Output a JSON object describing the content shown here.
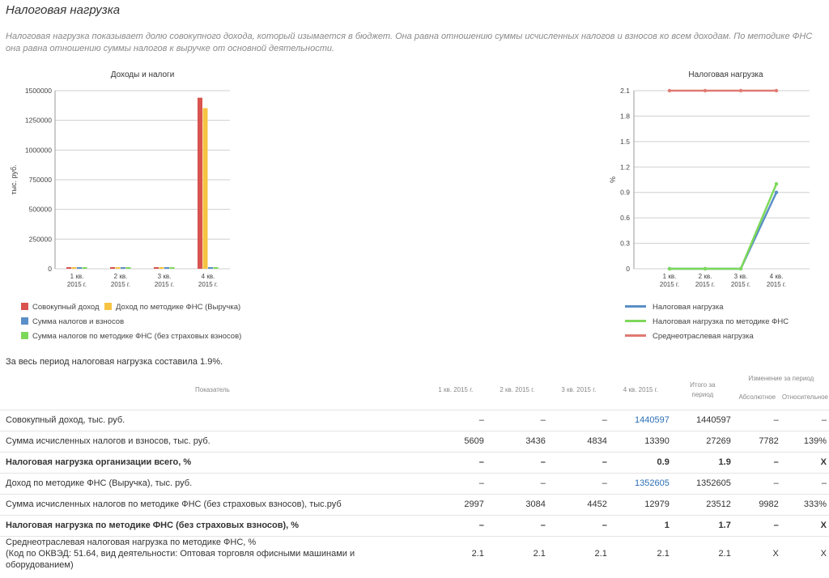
{
  "page": {
    "title": "Налоговая нагрузка",
    "description": "Налоговая нагрузка показывает долю совокупного дохода, который изымается в бюджет. Она равна отношению суммы исчисленных налогов и взносов ко всем доходам. По методике ФНС она равна отношению суммы налогов к выручке от основной деятельности."
  },
  "colors": {
    "red": "#d9534f",
    "yellow": "#f6c342",
    "blue": "#5b8fc7",
    "green": "#7dd85a",
    "red_line": "#e07a72"
  },
  "chart_data": [
    {
      "type": "bar",
      "title": "Доходы и налоги",
      "ylabel": "тыс. руб.",
      "categories": [
        "1 кв.\n2015 г.",
        "2 кв.\n2015 г.",
        "3 кв.\n2015 г.",
        "4 кв.\n2015 г."
      ],
      "category_lines": [
        [
          "1 кв.",
          "2015 г."
        ],
        [
          "2 кв.",
          "2015 г."
        ],
        [
          "3 кв.",
          "2015 г."
        ],
        [
          "4 кв.",
          "2015 г."
        ]
      ],
      "yticks": [
        0,
        250000,
        500000,
        750000,
        1000000,
        1250000,
        1500000
      ],
      "ylim": [
        0,
        1500000
      ],
      "series": [
        {
          "name": "Совокупный доход",
          "color": "#d9534f",
          "values": [
            0,
            0,
            0,
            1440597
          ]
        },
        {
          "name": "Доход по методике ФНС (Выручка)",
          "color": "#f6c342",
          "values": [
            0,
            0,
            0,
            1352605
          ]
        },
        {
          "name": "Сумма налогов и взносов",
          "color": "#5b8fc7",
          "values": [
            5609,
            3436,
            4834,
            13390
          ]
        },
        {
          "name": "Сумма налогов по методике ФНС (без страховых взносов)",
          "color": "#7dd85a",
          "values": [
            2997,
            3084,
            4452,
            12979
          ]
        }
      ],
      "grid": true,
      "legend": "bottom"
    },
    {
      "type": "line",
      "title": "Налоговая нагрузка",
      "ylabel": "%",
      "categories": [
        "1 кв.\n2015 г.",
        "2 кв.\n2015 г.",
        "3 кв.\n2015 г.",
        "4 кв.\n2015 г."
      ],
      "category_lines": [
        [
          "1 кв.",
          "2015 г."
        ],
        [
          "2 кв.",
          "2015 г."
        ],
        [
          "3 кв.",
          "2015 г."
        ],
        [
          "4 кв.",
          "2015 г."
        ]
      ],
      "yticks": [
        "0",
        "0.3",
        "0.6",
        "0.9",
        "1.2",
        "1.5",
        "1.8",
        "2.1"
      ],
      "ylim": [
        0,
        2.1
      ],
      "series": [
        {
          "name": "Налоговая нагрузка",
          "color": "#5b8fc7",
          "values": [
            0,
            0,
            0,
            0.9
          ]
        },
        {
          "name": "Налоговая нагрузка по методике ФНС",
          "color": "#7dd85a",
          "values": [
            0,
            0,
            0,
            1
          ]
        },
        {
          "name": "Среднеотраслевая нагрузка",
          "color": "#e07a72",
          "values": [
            2.1,
            2.1,
            2.1,
            2.1
          ]
        }
      ],
      "grid": true,
      "legend": "bottom"
    }
  ],
  "summary": "За весь период налоговая нагрузка составила  1.9%.",
  "table": {
    "headers": {
      "indicator": "Показатель",
      "q1": "1 кв. 2015 г.",
      "q2": "2 кв. 2015 г.",
      "q3": "3 кв. 2015 г.",
      "q4": "4 кв. 2015 г.",
      "total_line1": "Итого за",
      "total_line2": "период",
      "change": "Изменение за период",
      "absolute": "Абсолютное",
      "relative": "Относительное"
    },
    "rows": [
      {
        "name": "Совокупный доход, тыс. руб.",
        "cells": [
          "–",
          "–",
          "–",
          "1440597",
          "1440597",
          "–",
          "–"
        ],
        "bold": false,
        "link_col": 3
      },
      {
        "name": "Сумма исчисленных налогов и взносов, тыс. руб.",
        "cells": [
          "5609",
          "3436",
          "4834",
          "13390",
          "27269",
          "7782",
          "139%"
        ],
        "bold": false,
        "link_col": -1
      },
      {
        "name": "Налоговая нагрузка организации всего, %",
        "cells": [
          "–",
          "–",
          "–",
          "0.9",
          "1.9",
          "–",
          "X"
        ],
        "bold": true,
        "link_col": -1
      },
      {
        "name": "Доход по методике ФНС (Выручка), тыс. руб.",
        "cells": [
          "–",
          "–",
          "–",
          "1352605",
          "1352605",
          "–",
          "–"
        ],
        "bold": false,
        "link_col": 3
      },
      {
        "name": "Сумма исчисленных налогов по методике ФНС (без страховых взносов), тыс.руб",
        "cells": [
          "2997",
          "3084",
          "4452",
          "12979",
          "23512",
          "9982",
          "333%"
        ],
        "bold": false,
        "link_col": -1
      },
      {
        "name": "Налоговая нагрузка по методике ФНС (без страховых взносов), %",
        "cells": [
          "–",
          "–",
          "–",
          "1",
          "1.7",
          "–",
          "X"
        ],
        "bold": true,
        "link_col": -1
      }
    ],
    "last_row": {
      "name_line1": "Среднеотраслевая налоговая нагрузка по методике ФНС, %",
      "name_line2": "(Код по ОКВЭД: 51.64, вид деятельности: Оптовая торговля офисными машинами и оборудованием)",
      "cells": [
        "2.1",
        "2.1",
        "2.1",
        "2.1",
        "2.1",
        "X",
        "X"
      ]
    }
  }
}
